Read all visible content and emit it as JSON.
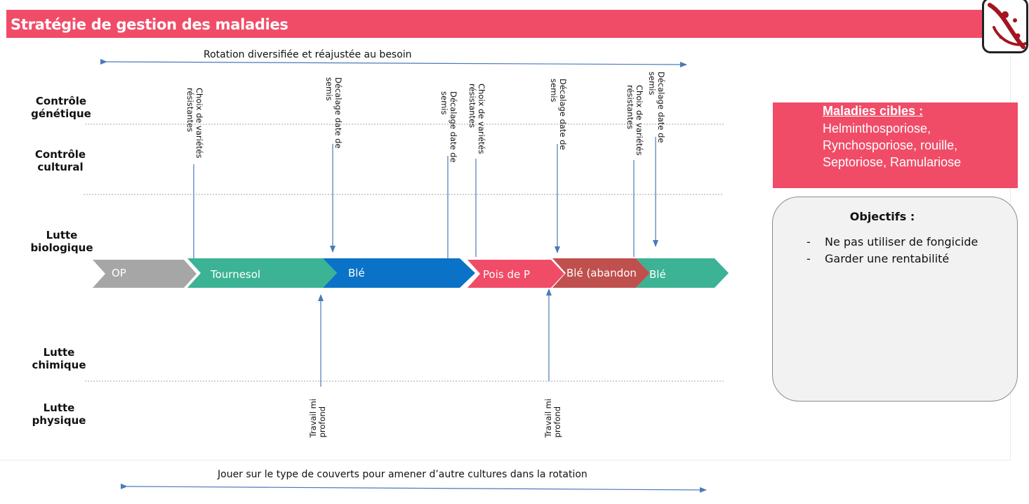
{
  "header": {
    "title": "Stratégie de gestion des maladies"
  },
  "top_arrow_label": "Rotation diversifiée et réajustée au besoin",
  "bottom_arrow_label": "Jouer sur le type de couverts pour amener d’autre cultures dans la rotation",
  "row_labels": [
    {
      "line1": "Contrôle",
      "line2": "génétique"
    },
    {
      "line1": "Contrôle",
      "line2": "cultural"
    },
    {
      "line1": "Lutte",
      "line2": "biologique"
    },
    {
      "line1": "Lutte",
      "line2": "chimique"
    },
    {
      "line1": "Lutte",
      "line2": "physique"
    }
  ],
  "crops": [
    {
      "label": "OP",
      "color": "#a6a6a6"
    },
    {
      "label": "Tournesol",
      "color": "#3bb394"
    },
    {
      "label": "Blé",
      "color": "#0a73c8"
    },
    {
      "label": "Pois de P",
      "color": "#f04c68"
    },
    {
      "label": "Blé (abandon",
      "color": "#c0504d"
    },
    {
      "label": "Blé",
      "color": "#3bb394"
    }
  ],
  "top_annotations": [
    {
      "line1": "Choix de variétés",
      "line2": "résistantes"
    },
    {
      "line1": "Décalage date de",
      "line2": "semis"
    },
    {
      "line1": "Décalage date de",
      "line2": "semis"
    },
    {
      "line1": "Choix de variétés",
      "line2": "résistantes"
    },
    {
      "line1": "Décalage date de",
      "line2": "semis"
    },
    {
      "line1": "Choix de variétés",
      "line2": "résistantes"
    },
    {
      "line1": "Décalage date de",
      "line2": "semis"
    }
  ],
  "bottom_annotations": [
    {
      "line1": "Travail mi",
      "line2": "profond"
    },
    {
      "line1": "Travail mi",
      "line2": "profond"
    }
  ],
  "maladies": {
    "title": "Maladies cibles :",
    "text": "Helminthosporiose, Rynchosporiose, rouille, Septoriose, Ramulariose"
  },
  "objectifs": {
    "title": "Objectifs :",
    "items": [
      "Ne pas utiliser de fongicide",
      "Garder une rentabilité"
    ]
  },
  "colors": {
    "accent": "#f04c68",
    "arrow": "#4a7ab8",
    "dashed_line": "#a6a6a6"
  }
}
